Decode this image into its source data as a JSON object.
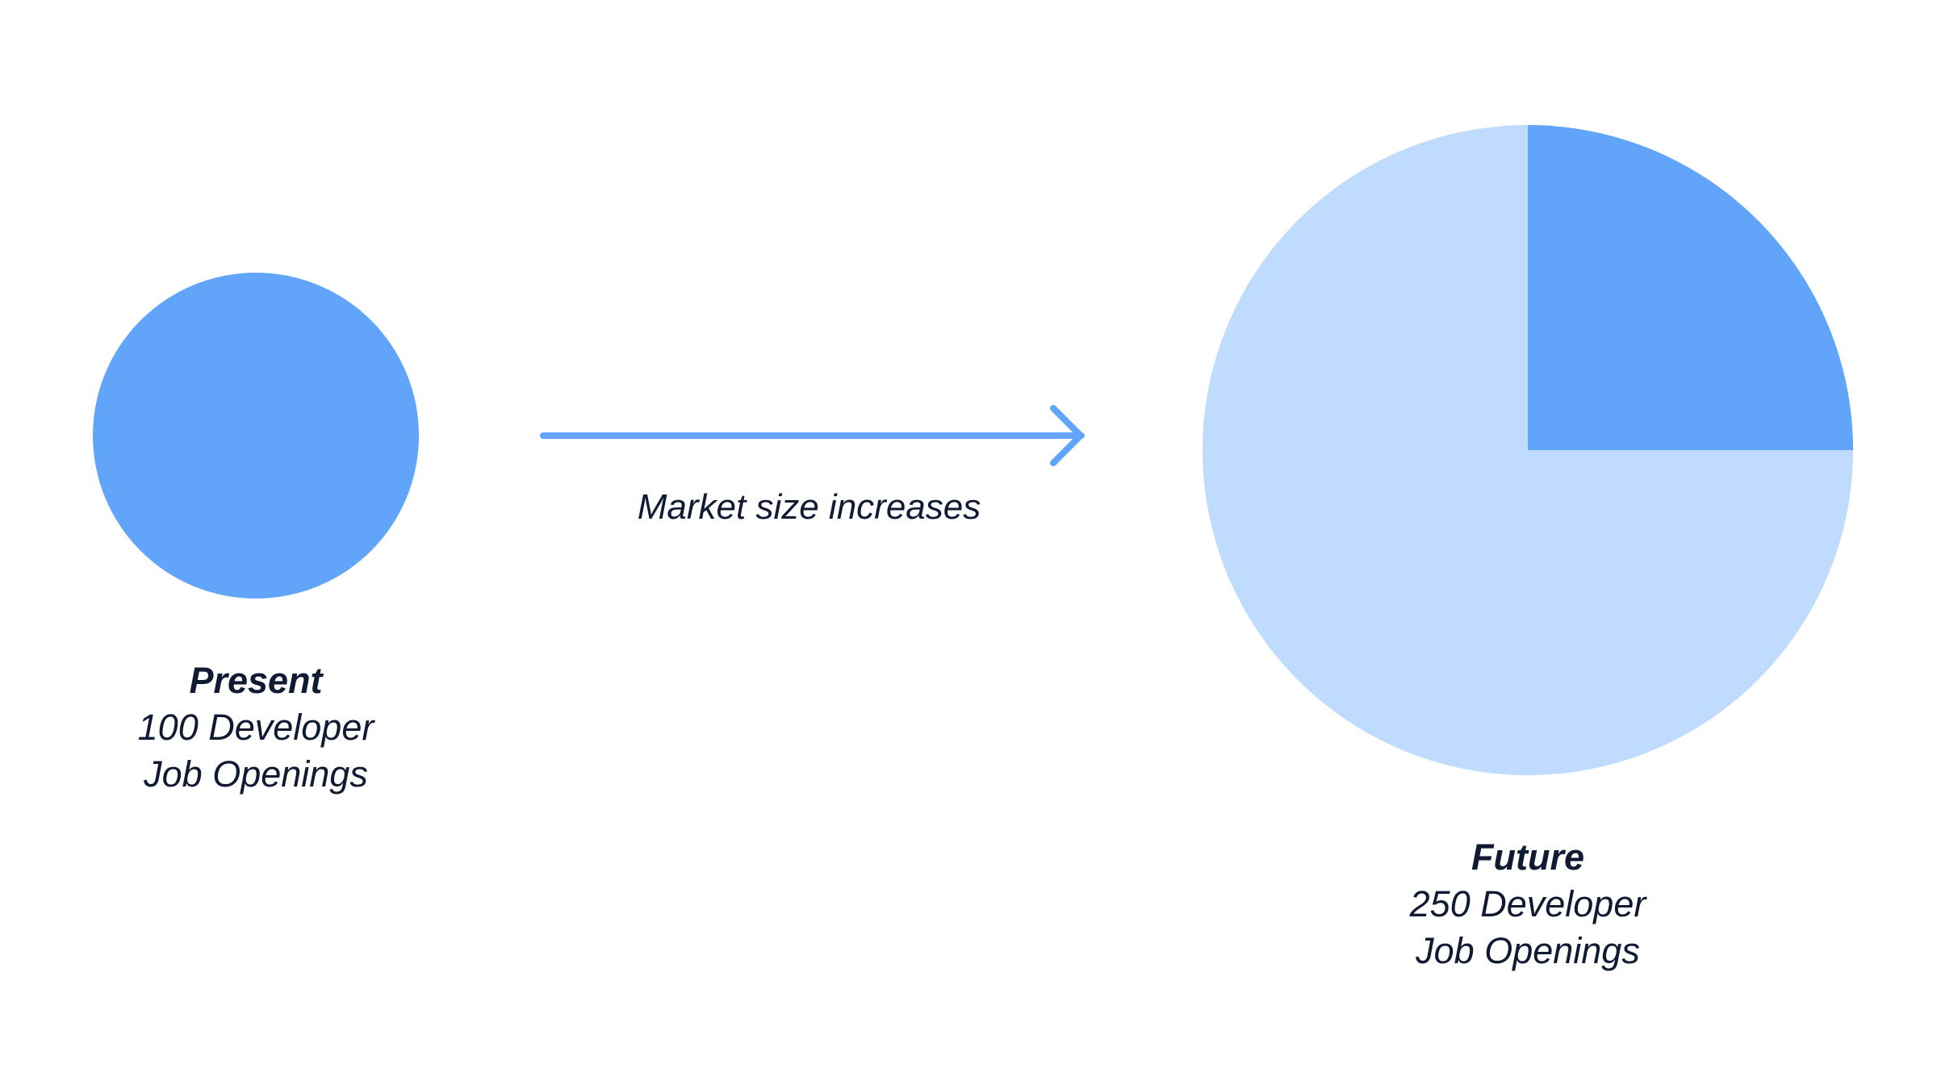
{
  "colors": {
    "primary": "#60a5fa",
    "light": "#bfdbfe",
    "text": "#111a33",
    "background": "#ffffff"
  },
  "present": {
    "title": "Present",
    "line1": "100 Developer",
    "line2": "Job Openings",
    "openings": 100
  },
  "future": {
    "title": "Future",
    "line1": "250 Developer",
    "line2": "Job Openings",
    "openings": 250,
    "highlighted_share": 0.25
  },
  "arrow": {
    "label": "Market size increases",
    "icon": "right-arrow-icon"
  }
}
